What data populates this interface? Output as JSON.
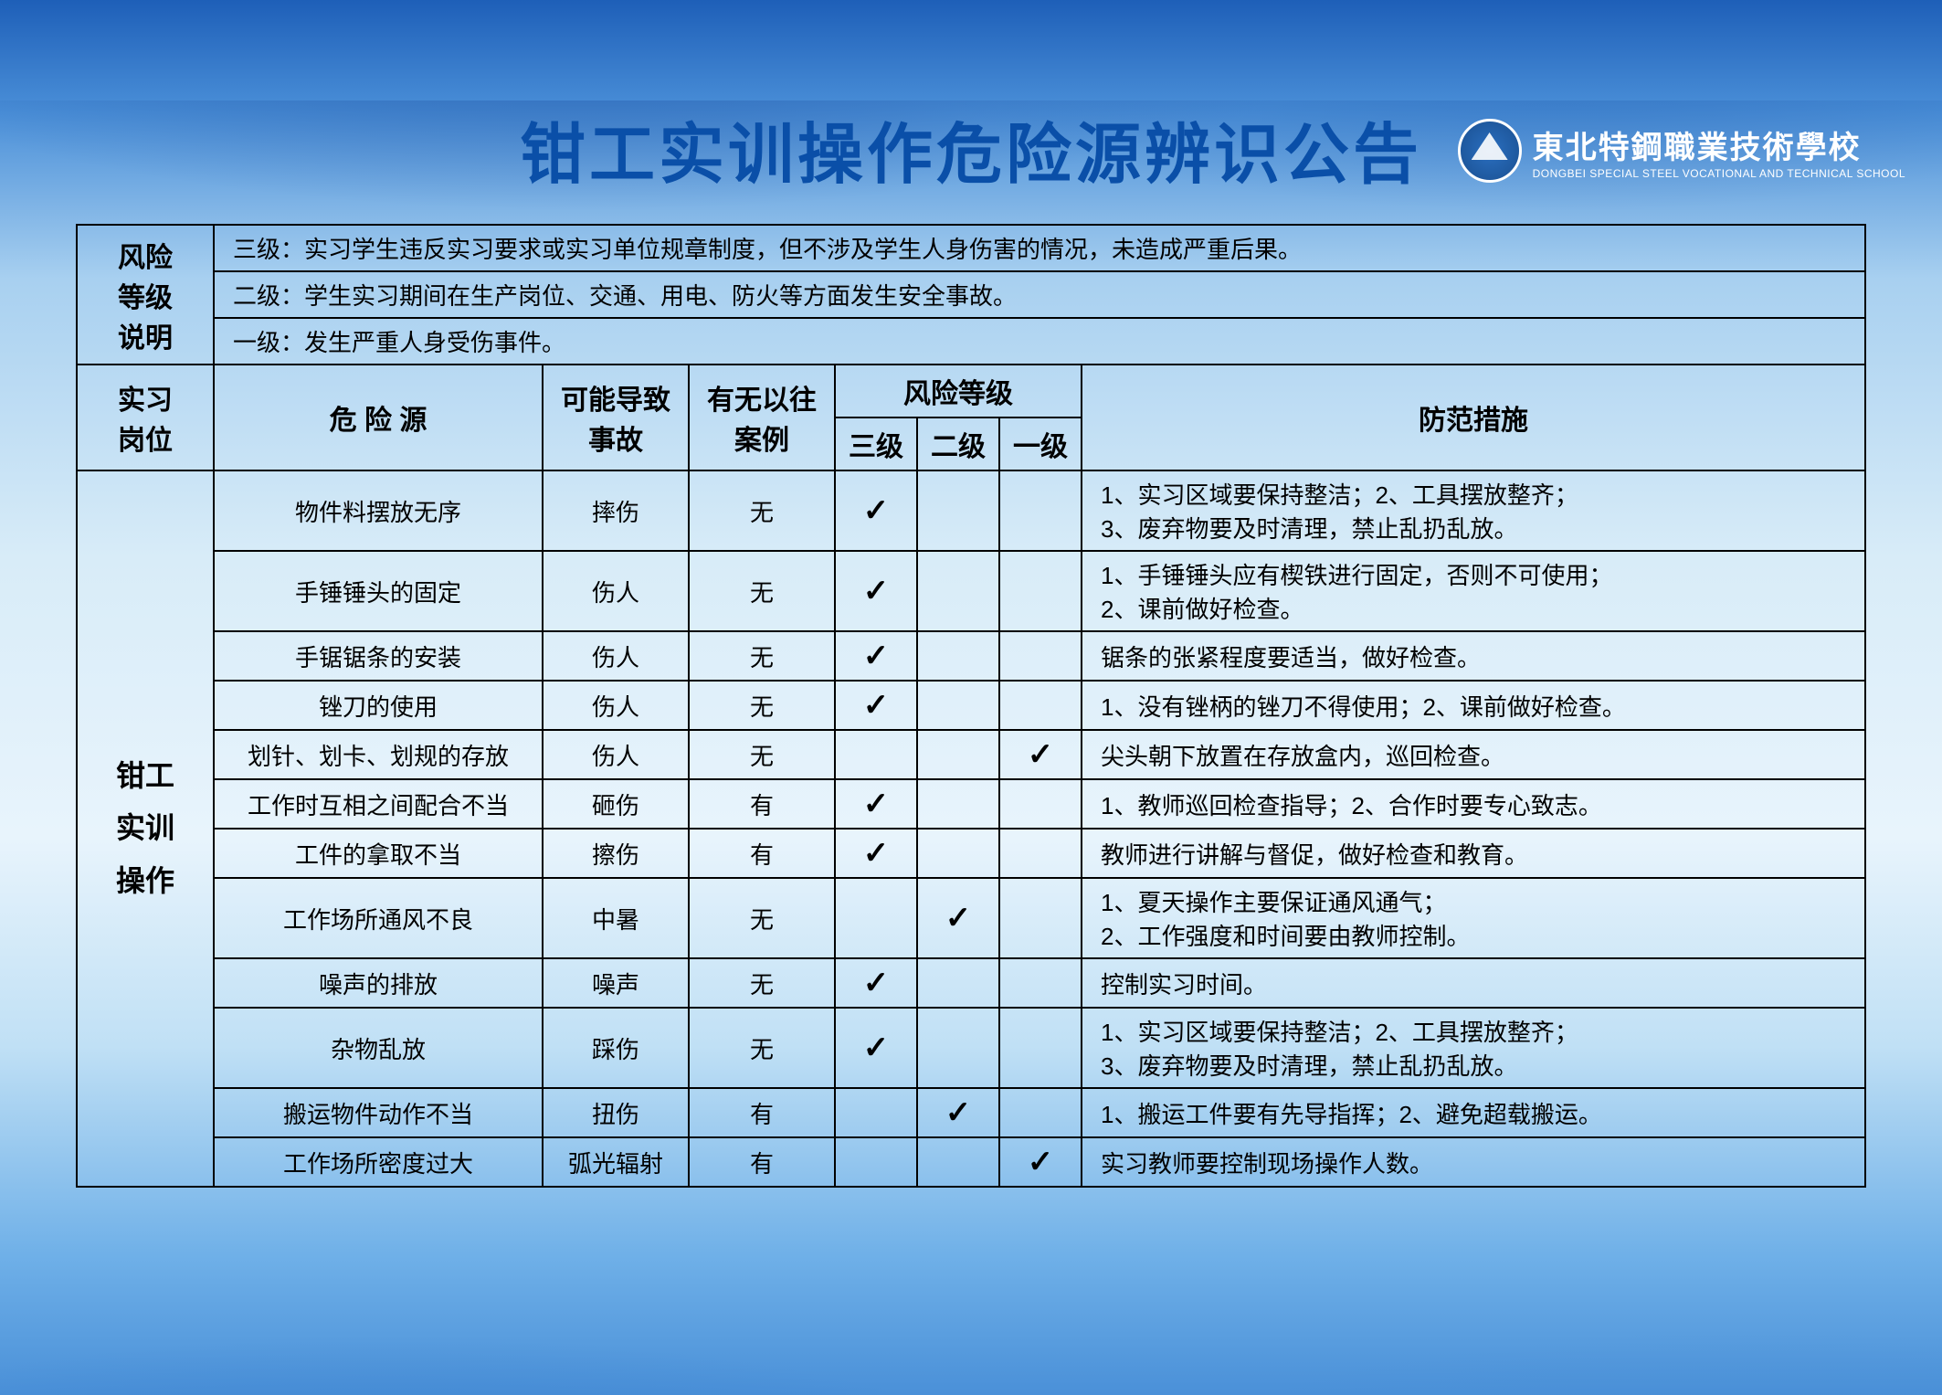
{
  "title": "钳工实训操作危险源辨识公告",
  "school": {
    "name_cn": "東北特鋼職業技術學校",
    "name_en": "DONGBEI SPECIAL STEEL VOCATIONAL AND TECHNICAL SCHOOL"
  },
  "risk_level_header": "风险\n等级\n说明",
  "risk_levels": [
    "三级：实习学生违反实习要求或实习单位规章制度，但不涉及学生人身伤害的情况，未造成严重后果。",
    "二级：学生实习期间在生产岗位、交通、用电、防火等方面发生安全事故。",
    "一级：发生严重人身受伤事件。"
  ],
  "columns": {
    "post": "实习\n岗位",
    "hazard": "危 险 源",
    "accident": "可能导致\n事故",
    "case": "有无以往\n案例",
    "risk_group": "风险等级",
    "lvl3": "三级",
    "lvl2": "二级",
    "lvl1": "一级",
    "measure": "防范措施"
  },
  "post_label": "钳工\n实训\n操作",
  "rows": [
    {
      "hazard": "物件料摆放无序",
      "accident": "摔伤",
      "case": "无",
      "lvl": "3",
      "measure": "1、实习区域要保持整洁；2、工具摆放整齐；\n3、废弃物要及时清理，禁止乱扔乱放。",
      "tall": true
    },
    {
      "hazard": "手锤锤头的固定",
      "accident": "伤人",
      "case": "无",
      "lvl": "3",
      "measure": "1、手锤锤头应有楔铁进行固定，否则不可使用；\n2、课前做好检查。",
      "tall": true
    },
    {
      "hazard": "手锯锯条的安装",
      "accident": "伤人",
      "case": "无",
      "lvl": "3",
      "measure": "锯条的张紧程度要适当，做好检查。"
    },
    {
      "hazard": "锉刀的使用",
      "accident": "伤人",
      "case": "无",
      "lvl": "3",
      "measure": "1、没有锉柄的锉刀不得使用；2、课前做好检查。"
    },
    {
      "hazard": "划针、划卡、划规的存放",
      "accident": "伤人",
      "case": "无",
      "lvl": "1",
      "measure": "尖头朝下放置在存放盒内，巡回检查。"
    },
    {
      "hazard": "工作时互相之间配合不当",
      "accident": "砸伤",
      "case": "有",
      "lvl": "3",
      "measure": "1、教师巡回检查指导；2、合作时要专心致志。"
    },
    {
      "hazard": "工件的拿取不当",
      "accident": "擦伤",
      "case": "有",
      "lvl": "3",
      "measure": "教师进行讲解与督促，做好检查和教育。"
    },
    {
      "hazard": "工作场所通风不良",
      "accident": "中暑",
      "case": "无",
      "lvl": "2",
      "measure": "1、夏天操作主要保证通风通气；\n2、工作强度和时间要由教师控制。",
      "tall": true
    },
    {
      "hazard": "噪声的排放",
      "accident": "噪声",
      "case": "无",
      "lvl": "3",
      "measure": "控制实习时间。"
    },
    {
      "hazard": "杂物乱放",
      "accident": "踩伤",
      "case": "无",
      "lvl": "3",
      "measure": "1、实习区域要保持整洁；2、工具摆放整齐；\n3、废弃物要及时清理，禁止乱扔乱放。",
      "tall": true
    },
    {
      "hazard": "搬运物件动作不当",
      "accident": "扭伤",
      "case": "有",
      "lvl": "2",
      "measure": "1、搬运工件要有先导指挥；2、避免超载搬运。"
    },
    {
      "hazard": "工作场所密度过大",
      "accident": "弧光辐射",
      "case": "有",
      "lvl": "1",
      "measure": "实习教师要控制现场操作人数。"
    }
  ],
  "colors": {
    "title": "#0a4fa8",
    "border": "#000000"
  }
}
